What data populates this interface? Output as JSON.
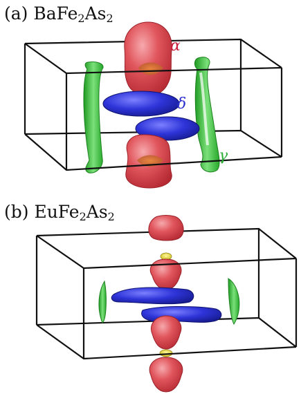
{
  "panels": [
    {
      "id": "a",
      "label_prefix": "(a) BaFe",
      "label_sub1": "2",
      "label_mid": "As",
      "label_sub2": "2",
      "pocket_labels": {
        "alpha": "α",
        "delta": "δ",
        "gamma": "γ"
      }
    },
    {
      "id": "b",
      "label_prefix": "(b) EuFe",
      "label_sub1": "2",
      "label_mid": "As",
      "label_sub2": "2"
    }
  ],
  "colors": {
    "alpha_pocket": "#d9464c",
    "delta_pocket": "#2a2fcc",
    "gamma_pocket": "#38c43b",
    "neck": "#e8e22a",
    "box_edge": "#111111",
    "label_alpha": "#c81e3c",
    "label_delta": "#2a2fcc",
    "label_gamma": "#2fae3a"
  }
}
